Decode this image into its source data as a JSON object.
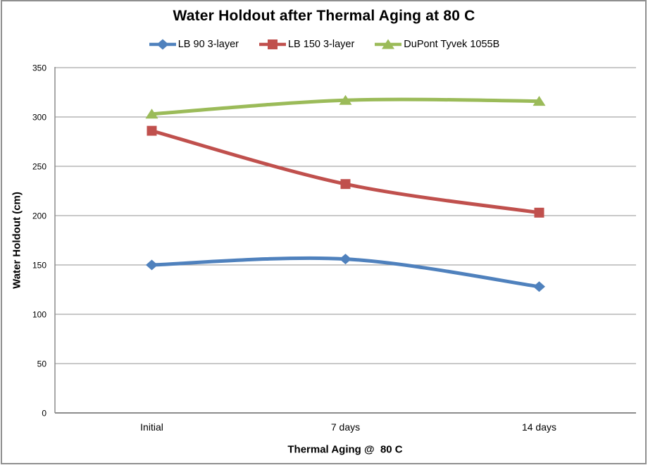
{
  "chart_data": {
    "type": "line",
    "title": "Water Holdout after Thermal Aging at 80 C",
    "xlabel": "Thermal Aging @  80 C",
    "ylabel": "Water Holdout (cm)",
    "categories": [
      "Initial",
      "7 days",
      "14 days"
    ],
    "series": [
      {
        "name": "LB 90 3-layer",
        "color": "#4F81BD",
        "marker": "diamond",
        "values": [
          150,
          156,
          128
        ]
      },
      {
        "name": "LB 150 3-layer",
        "color": "#C0504D",
        "marker": "square",
        "values": [
          286,
          232,
          203
        ]
      },
      {
        "name": "DuPont Tyvek 1055B",
        "color": "#9BBB59",
        "marker": "triangle",
        "values": [
          303,
          317,
          316
        ]
      }
    ],
    "ylim": [
      0,
      350
    ],
    "ytick_step": 50,
    "grid": true,
    "smooth": true,
    "legend_position": "top",
    "colors": {
      "gridline": "#A6A6A6",
      "axis": "#8C8C8C",
      "text": "#000000",
      "background": "#FFFFFF",
      "frame_border": "#8F8F8F"
    }
  }
}
